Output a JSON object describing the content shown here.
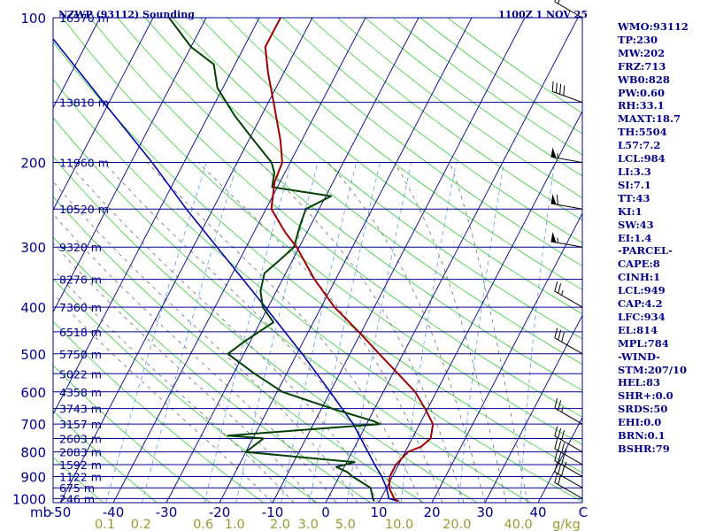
{
  "header": {
    "station": "NZWP (93112) Sounding",
    "time": "1100Z  1 NOV 25"
  },
  "colors": {
    "axes": "#00008b",
    "temperature": "#a00000",
    "dewpoint": "#004000",
    "parcel": "#0000b0",
    "dry_adiabat": "#32cd32",
    "moist_adiabat": "#5a5a5a",
    "mixing_ratio": "#5aa0e0",
    "isotherm": "#00008b"
  },
  "chart_data": {
    "type": "skew-t",
    "title": "NZWP (93112) Sounding 1100Z 1 NOV 25",
    "ylabel": "mb",
    "xlabel": "C",
    "xlim": [
      -50,
      50
    ],
    "ylim": [
      1000,
      100
    ],
    "pressure_ticks": [
      1000,
      900,
      800,
      700,
      600,
      500,
      400,
      300,
      200,
      100
    ],
    "temp_ticks": [
      -50,
      -40,
      -30,
      -20,
      -10,
      0,
      10,
      20,
      30,
      40
    ],
    "mixing_ratio_labels": [
      "0.1",
      "0.2",
      "0.6",
      "1.0",
      "2.0",
      "3.0",
      "5.0",
      "10.0",
      "20.0",
      "40.0"
    ],
    "mixing_ratio_unit": "g/kg",
    "height_levels": [
      {
        "p": 100,
        "label": "16570 m"
      },
      {
        "p": 150,
        "label": "13810 m"
      },
      {
        "p": 200,
        "label": "11960 m"
      },
      {
        "p": 250,
        "label": "10520 m"
      },
      {
        "p": 300,
        "label": "9320 m"
      },
      {
        "p": 350,
        "label": "8276 m"
      },
      {
        "p": 400,
        "label": "7360 m"
      },
      {
        "p": 450,
        "label": "6518 m"
      },
      {
        "p": 500,
        "label": "5750 m"
      },
      {
        "p": 550,
        "label": "5022 m"
      },
      {
        "p": 600,
        "label": "4358 m"
      },
      {
        "p": 650,
        "label": "3743 m"
      },
      {
        "p": 700,
        "label": "3157 m"
      },
      {
        "p": 750,
        "label": "2603 m"
      },
      {
        "p": 800,
        "label": "2083 m"
      },
      {
        "p": 850,
        "label": "1592 m"
      },
      {
        "p": 900,
        "label": "1122 m"
      },
      {
        "p": 950,
        "label": "675 m"
      },
      {
        "p": 1000,
        "label": "246 m"
      }
    ],
    "temperature": [
      [
        1013,
        13.5
      ],
      [
        1000,
        12.5
      ],
      [
        950,
        10.5
      ],
      [
        900,
        9.5
      ],
      [
        850,
        9.5
      ],
      [
        800,
        10.5
      ],
      [
        780,
        12.5
      ],
      [
        750,
        13.5
      ],
      [
        700,
        12.5
      ],
      [
        650,
        9.5
      ],
      [
        600,
        6.0
      ],
      [
        550,
        1.0
      ],
      [
        500,
        -4.5
      ],
      [
        450,
        -10.5
      ],
      [
        400,
        -17.5
      ],
      [
        350,
        -24.0
      ],
      [
        300,
        -30.5
      ],
      [
        280,
        -34.0
      ],
      [
        250,
        -39.0
      ],
      [
        220,
        -41.0
      ],
      [
        200,
        -41.5
      ],
      [
        180,
        -44.0
      ],
      [
        150,
        -49.0
      ],
      [
        130,
        -53.0
      ],
      [
        115,
        -56.0
      ],
      [
        100,
        -56.0
      ]
    ],
    "dewpoint": [
      [
        1013,
        9.0
      ],
      [
        1000,
        8.5
      ],
      [
        950,
        7.0
      ],
      [
        900,
        2.5
      ],
      [
        880,
        1.0
      ],
      [
        860,
        -1.5
      ],
      [
        840,
        1.5
      ],
      [
        800,
        -20.0
      ],
      [
        750,
        -18.0
      ],
      [
        740,
        -25.0
      ],
      [
        700,
        2.5
      ],
      [
        690,
        1.0
      ],
      [
        650,
        -8.0
      ],
      [
        600,
        -19.0
      ],
      [
        550,
        -26.0
      ],
      [
        500,
        -33.0
      ],
      [
        470,
        -31.0
      ],
      [
        430,
        -27.5
      ],
      [
        400,
        -31.0
      ],
      [
        370,
        -33.0
      ],
      [
        340,
        -34.0
      ],
      [
        320,
        -32.5
      ],
      [
        300,
        -31.0
      ],
      [
        270,
        -32.0
      ],
      [
        250,
        -32.5
      ],
      [
        235,
        -29.0
      ],
      [
        225,
        -41.0
      ],
      [
        210,
        -42.0
      ],
      [
        200,
        -43.5
      ],
      [
        180,
        -49.0
      ],
      [
        160,
        -55.0
      ],
      [
        140,
        -61.0
      ],
      [
        125,
        -64.0
      ],
      [
        115,
        -70.0
      ],
      [
        100,
        -77.0
      ]
    ],
    "parcel": [
      [
        1013,
        13.5
      ],
      [
        1000,
        11.5
      ],
      [
        950,
        10.0
      ],
      [
        900,
        8.0
      ],
      [
        850,
        5.5
      ],
      [
        800,
        3.0
      ],
      [
        700,
        -2.5
      ],
      [
        600,
        -10.0
      ],
      [
        500,
        -19.0
      ],
      [
        400,
        -30.5
      ],
      [
        300,
        -45.5
      ],
      [
        250,
        -55.0
      ],
      [
        200,
        -66.0
      ],
      [
        150,
        -81.0
      ],
      [
        100,
        -102.0
      ]
    ],
    "wind_barbs": [
      {
        "p": 1000,
        "dir": 300,
        "speed_kt": 20
      },
      {
        "p": 950,
        "dir": 300,
        "speed_kt": 30
      },
      {
        "p": 900,
        "dir": 300,
        "speed_kt": 35
      },
      {
        "p": 850,
        "dir": 300,
        "speed_kt": 35
      },
      {
        "p": 800,
        "dir": 300,
        "speed_kt": 30
      },
      {
        "p": 700,
        "dir": 300,
        "speed_kt": 25
      },
      {
        "p": 500,
        "dir": 300,
        "speed_kt": 30
      },
      {
        "p": 400,
        "dir": 300,
        "speed_kt": 25
      },
      {
        "p": 300,
        "dir": 280,
        "speed_kt": 55
      },
      {
        "p": 250,
        "dir": 280,
        "speed_kt": 60
      },
      {
        "p": 200,
        "dir": 280,
        "speed_kt": 55
      },
      {
        "p": 150,
        "dir": 290,
        "speed_kt": 40
      },
      {
        "p": 100,
        "dir": 300,
        "speed_kt": 20
      }
    ]
  },
  "stats": [
    "WMO:93112",
    "TP:230",
    "MW:202",
    "FRZ:713",
    "WB0:828",
    "PW:0.60",
    "RH:33.1",
    "MAXT:18.7",
    "TH:5504",
    "L57:7.2",
    "LCL:984",
    "LI:3.3",
    "SI:7.1",
    "TT:43",
    "KI:1",
    "SW:43",
    "EI:1.4",
    "-PARCEL-",
    "CAPE:8",
    "CINH:1",
    "LCL:949",
    "CAP:4.2",
    "LFC:934",
    "EL:814",
    "MPL:784",
    "-WIND-",
    "STM:207/10",
    "HEL:83",
    "SHR+:0.0",
    "SRDS:50",
    "EHI:0.0",
    "BRN:0.1",
    "BSHR:79"
  ]
}
